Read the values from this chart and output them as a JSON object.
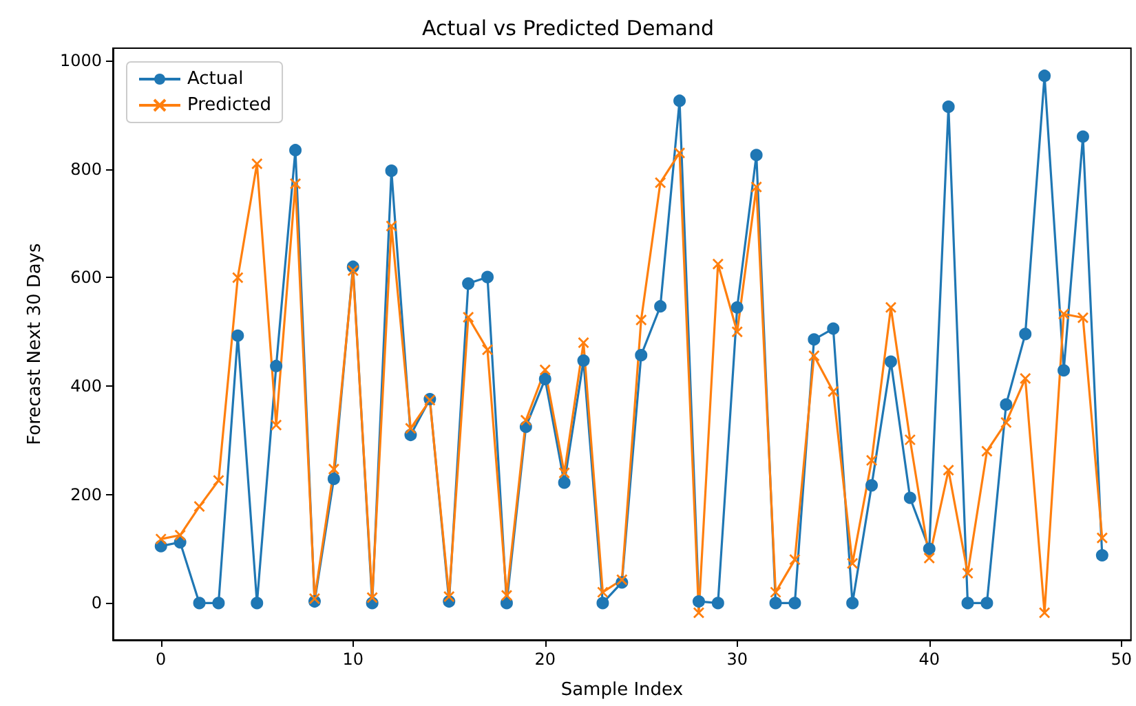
{
  "chart_data": {
    "type": "line",
    "title": "Actual vs Predicted Demand",
    "xlabel": "Sample Index",
    "ylabel": "Forecast Next 30 Days",
    "x": [
      0,
      1,
      2,
      3,
      4,
      5,
      6,
      7,
      8,
      9,
      10,
      11,
      12,
      13,
      14,
      15,
      16,
      17,
      18,
      19,
      20,
      21,
      22,
      23,
      24,
      25,
      26,
      27,
      28,
      29,
      30,
      31,
      32,
      33,
      34,
      35,
      36,
      37,
      38,
      39,
      40,
      41,
      42,
      43,
      44,
      45,
      46,
      47,
      48,
      49
    ],
    "series": [
      {
        "name": "Actual",
        "color": "#1f77b4",
        "marker": "circle",
        "values": [
          105,
          112,
          0,
          0,
          493,
          0,
          437,
          835,
          3,
          229,
          620,
          0,
          797,
          310,
          376,
          3,
          589,
          601,
          0,
          325,
          413,
          222,
          447,
          0,
          38,
          457,
          547,
          926,
          3,
          0,
          545,
          826,
          0,
          0,
          486,
          506,
          0,
          217,
          445,
          194,
          100,
          915,
          0,
          0,
          366,
          496,
          972,
          429,
          860,
          88
        ]
      },
      {
        "name": "Predicted",
        "color": "#ff7f0e",
        "marker": "cross",
        "values": [
          118,
          125,
          178,
          226,
          600,
          810,
          328,
          773,
          8,
          247,
          613,
          10,
          695,
          322,
          374,
          12,
          527,
          467,
          14,
          337,
          430,
          240,
          480,
          20,
          43,
          522,
          775,
          830,
          -18,
          625,
          500,
          767,
          20,
          80,
          456,
          390,
          73,
          263,
          545,
          301,
          83,
          245,
          55,
          280,
          333,
          414,
          -18,
          533,
          526,
          120
        ]
      }
    ],
    "xlim": [
      -2.5,
      50.5
    ],
    "xticks": [
      0,
      10,
      20,
      30,
      40,
      50
    ],
    "ylim": [
      -68,
      1023
    ],
    "yticks": [
      0,
      200,
      400,
      600,
      800,
      1000
    ],
    "legend": "top left"
  }
}
